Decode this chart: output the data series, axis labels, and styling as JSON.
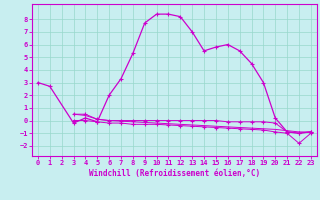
{
  "xlabel": "Windchill (Refroidissement éolien,°C)",
  "background_color": "#c8eef0",
  "grid_color": "#98d8cc",
  "line_color": "#cc00cc",
  "xlim": [
    -0.5,
    23.5
  ],
  "ylim": [
    -2.8,
    9.2
  ],
  "yticks": [
    -2,
    -1,
    0,
    1,
    2,
    3,
    4,
    5,
    6,
    7,
    8
  ],
  "xticks": [
    0,
    1,
    2,
    3,
    4,
    5,
    6,
    7,
    8,
    9,
    10,
    11,
    12,
    13,
    14,
    15,
    16,
    17,
    18,
    19,
    20,
    21,
    22,
    23
  ],
  "series1_x": [
    0,
    1,
    3,
    4,
    5,
    6,
    7,
    8,
    9,
    10,
    11,
    12,
    13,
    14,
    15,
    16,
    17,
    18,
    19,
    20,
    21,
    22,
    23
  ],
  "series1_y": [
    3.0,
    2.7,
    -0.2,
    0.2,
    -0.1,
    2.0,
    3.3,
    5.3,
    7.7,
    8.4,
    8.4,
    8.2,
    7.0,
    5.5,
    5.8,
    6.0,
    5.5,
    4.5,
    3.0,
    0.2,
    -0.9,
    -1.0,
    -0.9
  ],
  "series2_x": [
    3,
    4,
    5,
    6,
    7,
    8,
    9,
    10,
    11,
    12,
    13,
    14,
    15,
    16,
    17,
    18,
    19,
    20,
    21,
    22,
    23
  ],
  "series2_y": [
    0.5,
    0.5,
    0.1,
    0.0,
    0.0,
    0.0,
    0.0,
    0.0,
    0.0,
    0.0,
    0.0,
    0.0,
    0.0,
    -0.1,
    -0.1,
    -0.1,
    -0.1,
    -0.2,
    -0.9,
    -1.0,
    -0.9
  ],
  "series3_x": [
    3,
    4,
    5,
    6,
    7,
    8,
    9,
    10,
    11,
    12,
    13,
    14,
    15,
    16,
    17,
    18,
    19,
    20,
    21,
    22,
    23
  ],
  "series3_y": [
    0.0,
    0.0,
    -0.1,
    -0.2,
    -0.2,
    -0.3,
    -0.3,
    -0.3,
    -0.35,
    -0.4,
    -0.45,
    -0.5,
    -0.55,
    -0.6,
    -0.65,
    -0.7,
    -0.75,
    -0.9,
    -1.0,
    -1.8,
    -1.0
  ],
  "series4_x": [
    3,
    4,
    5,
    6,
    7,
    8,
    9,
    10,
    11,
    12,
    13,
    14,
    15,
    16,
    17,
    18,
    19,
    20,
    21,
    22,
    23
  ],
  "series4_y": [
    0.5,
    0.4,
    0.1,
    0.0,
    -0.05,
    -0.1,
    -0.15,
    -0.2,
    -0.25,
    -0.3,
    -0.35,
    -0.4,
    -0.45,
    -0.5,
    -0.55,
    -0.6,
    -0.65,
    -0.7,
    -0.8,
    -0.9,
    -0.9
  ]
}
